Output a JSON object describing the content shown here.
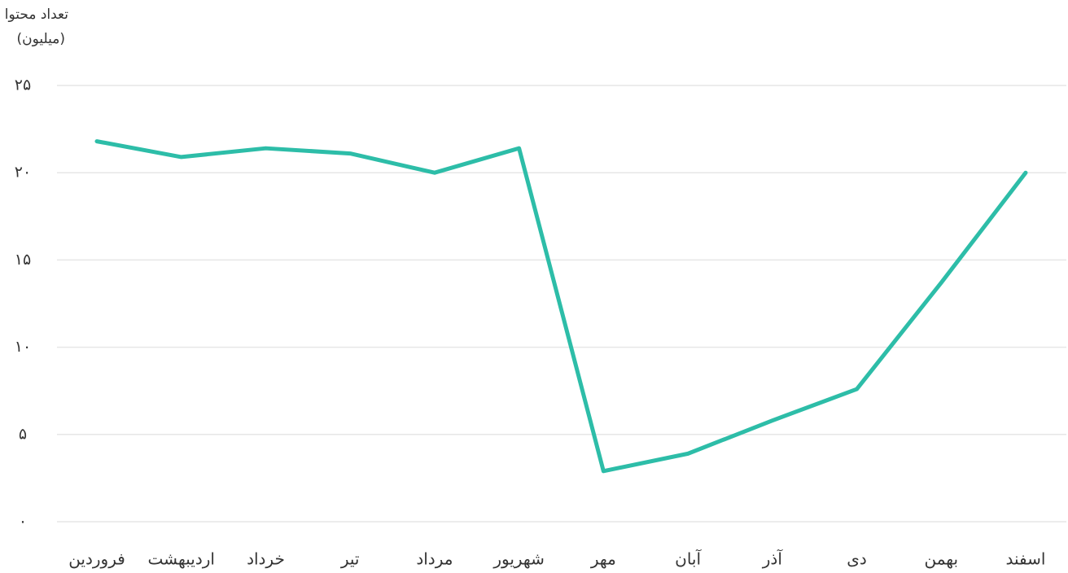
{
  "chart_data": {
    "type": "line",
    "y_label": [
      "تعداد محتوا",
      "(میلیون)"
    ],
    "categories": [
      "فروردین",
      "اردیبهشت",
      "خرداد",
      "تیر",
      "مرداد",
      "شهریور",
      "مهر",
      "آبان",
      "آذر",
      "دی",
      "بهمن",
      "اسفند"
    ],
    "values": [
      21.8,
      20.9,
      21.4,
      21.1,
      20.0,
      21.4,
      2.9,
      3.9,
      5.8,
      7.6,
      13.7,
      20.0
    ],
    "color": "#2dbda8",
    "ylim": [
      0,
      25
    ],
    "yticks": [
      {
        "value": 0,
        "label": "۰"
      },
      {
        "value": 5,
        "label": "۵"
      },
      {
        "value": 10,
        "label": "۱۰"
      },
      {
        "value": 15,
        "label": "۱۵"
      },
      {
        "value": 20,
        "label": "۲۰"
      },
      {
        "value": 25,
        "label": "۲۵"
      }
    ],
    "grid": true
  }
}
